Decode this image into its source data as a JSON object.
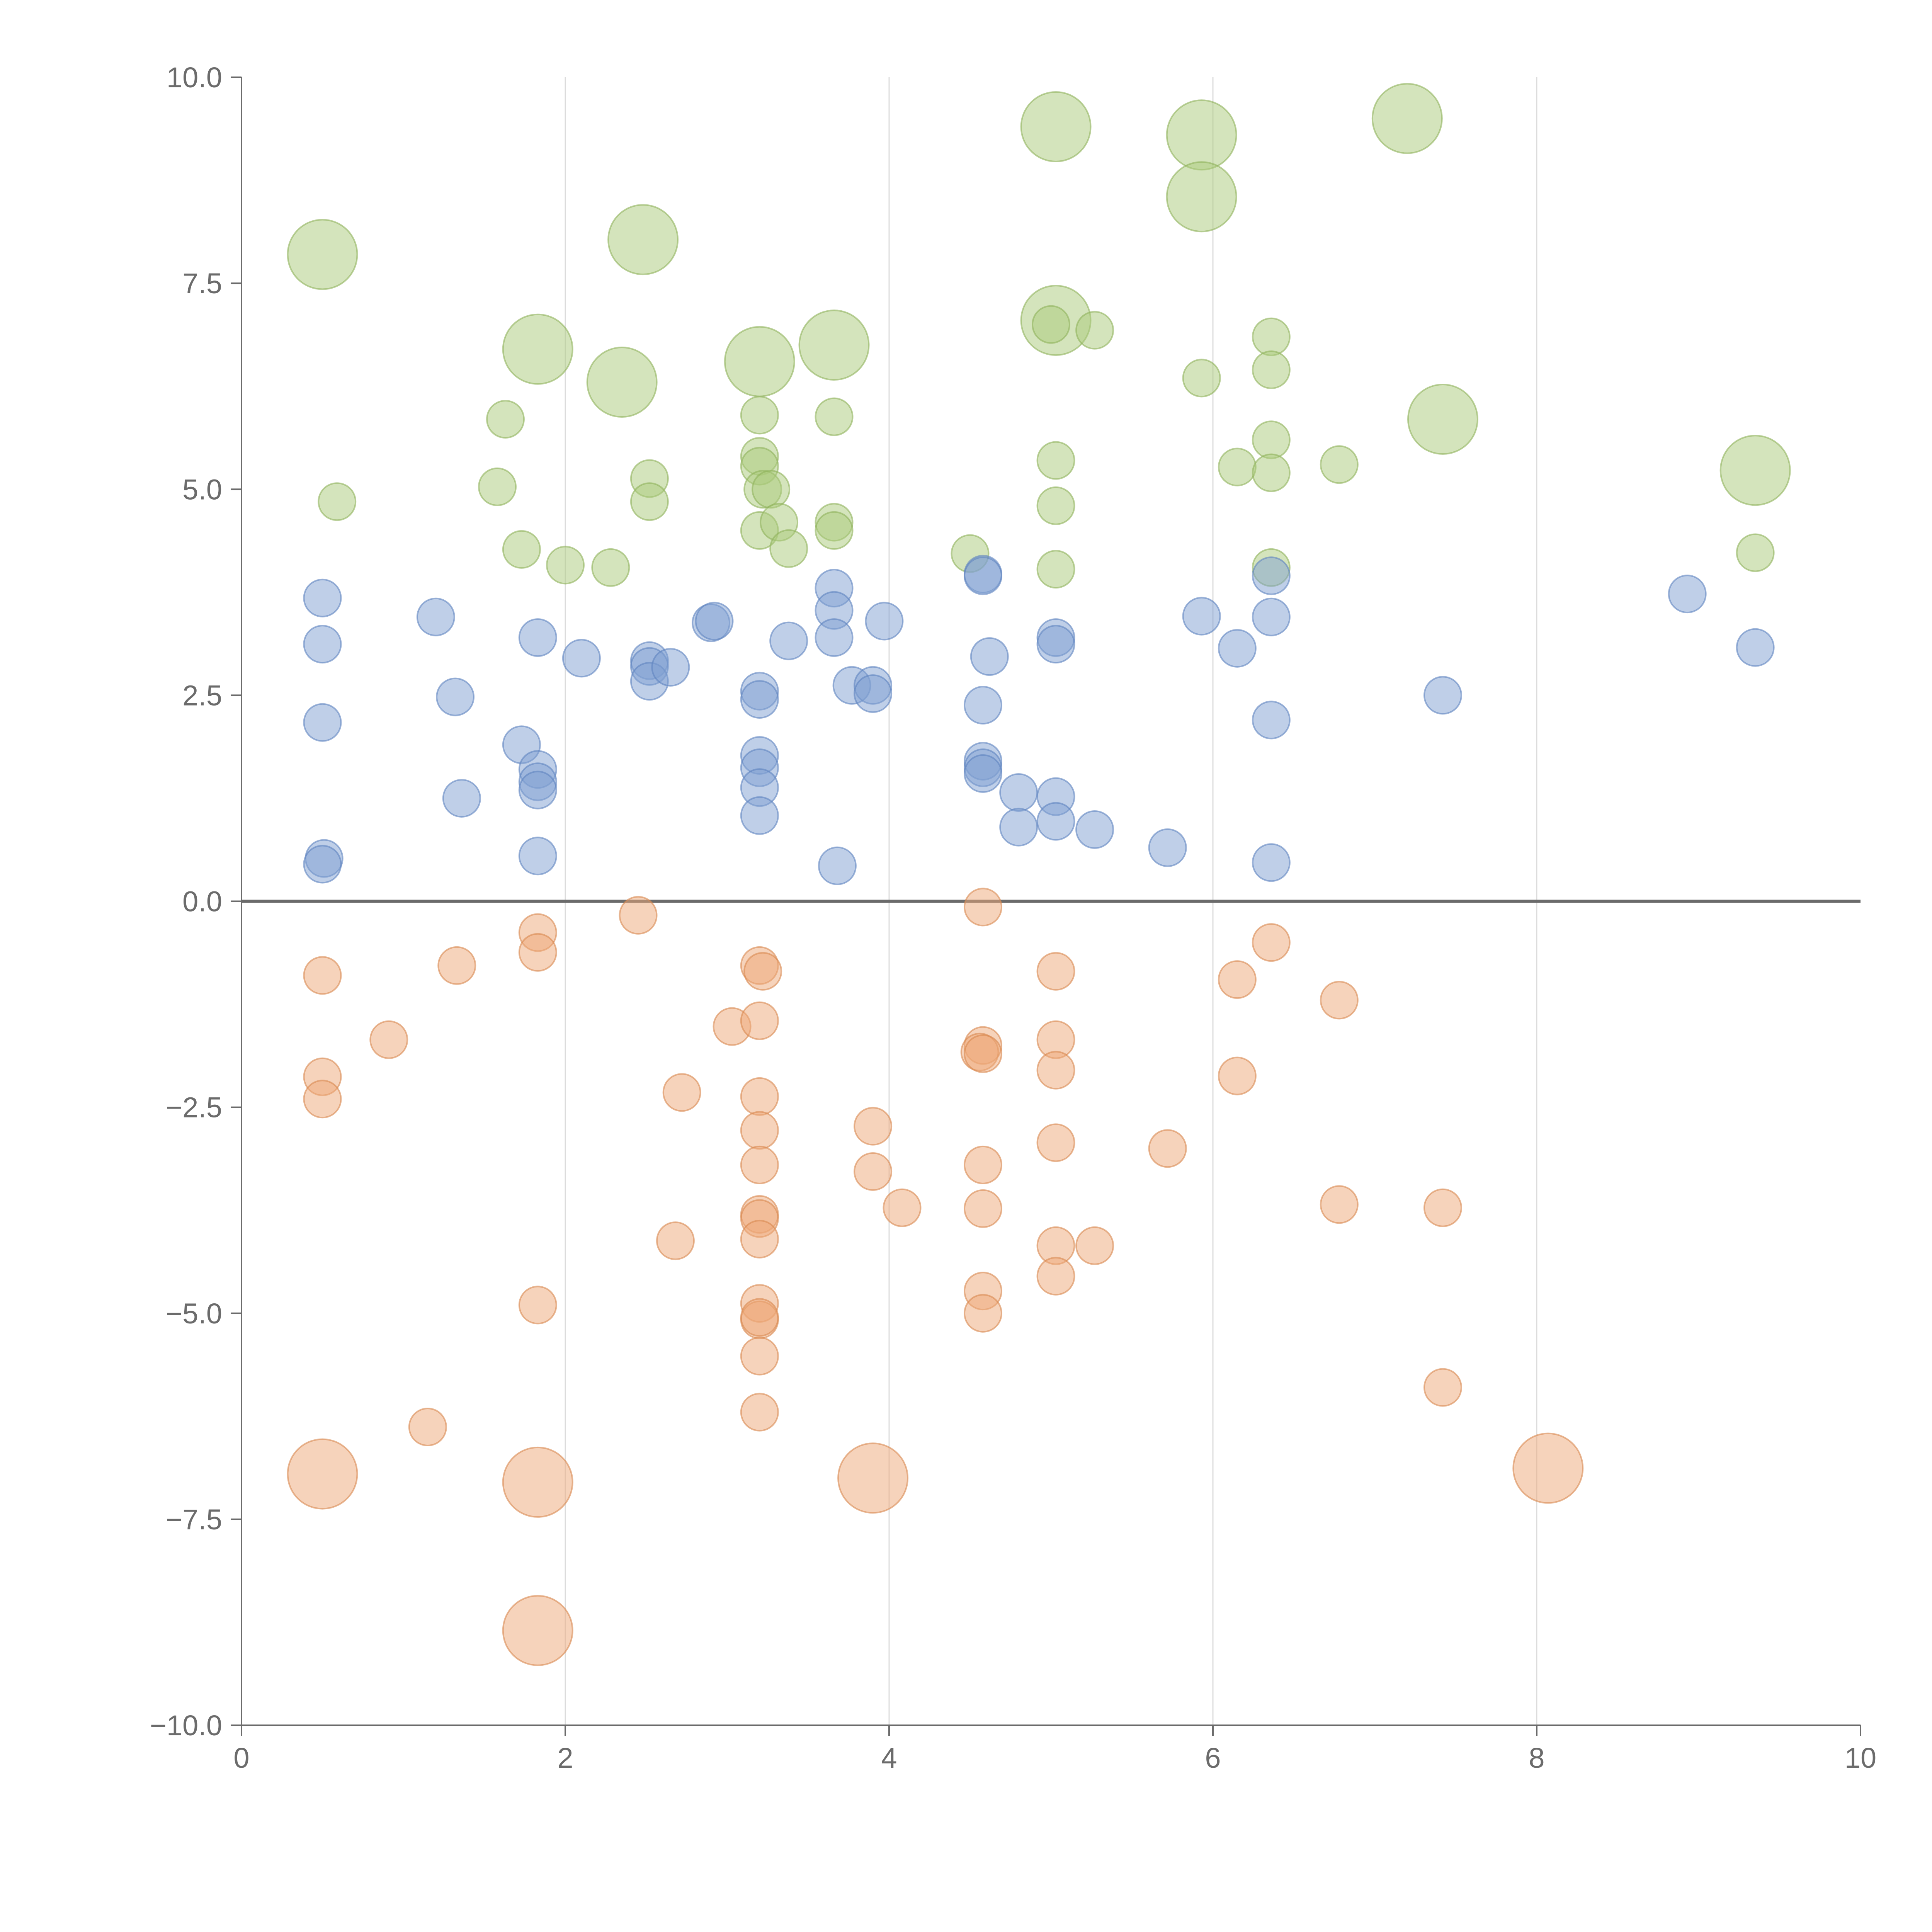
{
  "chart_data": {
    "type": "scatter",
    "title": "",
    "xlabel": "",
    "ylabel": "",
    "xlim": [
      0,
      10
    ],
    "ylim": [
      -10,
      10
    ],
    "grid": "x-only",
    "xticks": [
      0,
      2,
      4,
      6,
      8,
      10
    ],
    "xtick_labels": [
      "0",
      "2",
      "4",
      "6",
      "8",
      "10"
    ],
    "yticks": [
      10,
      7.5,
      5,
      2.5,
      0,
      -2.5,
      -5,
      -7.5,
      -10
    ],
    "ytick_labels": [
      "10.0",
      "7.5",
      "5.0",
      "2.5",
      "0.0",
      "−2.5",
      "−5.0",
      "−7.5",
      "−10.0"
    ],
    "baseline_y": 0,
    "series": [
      {
        "name": "green",
        "color": "#a9c97a",
        "stroke": "#8fb35c",
        "points": [
          {
            "x": 0.5,
            "y": 7.85,
            "s": 2
          },
          {
            "x": 0.59,
            "y": 4.85,
            "s": 1
          },
          {
            "x": 1.63,
            "y": 5.85,
            "s": 1
          },
          {
            "x": 1.58,
            "y": 5.03,
            "s": 1
          },
          {
            "x": 1.73,
            "y": 4.27,
            "s": 1
          },
          {
            "x": 1.83,
            "y": 6.7,
            "s": 2
          },
          {
            "x": 2.0,
            "y": 4.08,
            "s": 1
          },
          {
            "x": 2.28,
            "y": 4.05,
            "s": 1
          },
          {
            "x": 2.35,
            "y": 6.3,
            "s": 2
          },
          {
            "x": 2.48,
            "y": 8.03,
            "s": 2
          },
          {
            "x": 2.52,
            "y": 5.13,
            "s": 1
          },
          {
            "x": 2.52,
            "y": 4.85,
            "s": 1
          },
          {
            "x": 3.2,
            "y": 6.55,
            "s": 2
          },
          {
            "x": 3.2,
            "y": 5.9,
            "s": 1
          },
          {
            "x": 3.2,
            "y": 5.4,
            "s": 1
          },
          {
            "x": 3.2,
            "y": 5.28,
            "s": 1
          },
          {
            "x": 3.22,
            "y": 5.0,
            "s": 1
          },
          {
            "x": 3.27,
            "y": 5.0,
            "s": 1
          },
          {
            "x": 3.2,
            "y": 4.5,
            "s": 1
          },
          {
            "x": 3.32,
            "y": 4.6,
            "s": 1
          },
          {
            "x": 3.38,
            "y": 4.28,
            "s": 1
          },
          {
            "x": 3.66,
            "y": 6.75,
            "s": 2
          },
          {
            "x": 3.66,
            "y": 5.88,
            "s": 1
          },
          {
            "x": 3.66,
            "y": 4.6,
            "s": 1
          },
          {
            "x": 3.66,
            "y": 4.5,
            "s": 1
          },
          {
            "x": 4.5,
            "y": 4.22,
            "s": 1
          },
          {
            "x": 5.03,
            "y": 9.4,
            "s": 2
          },
          {
            "x": 5.03,
            "y": 7.05,
            "s": 2
          },
          {
            "x": 5.0,
            "y": 7.0,
            "s": 1
          },
          {
            "x": 5.27,
            "y": 6.93,
            "s": 1
          },
          {
            "x": 5.03,
            "y": 5.35,
            "s": 1
          },
          {
            "x": 5.03,
            "y": 4.8,
            "s": 1
          },
          {
            "x": 5.03,
            "y": 4.03,
            "s": 1
          },
          {
            "x": 5.93,
            "y": 9.3,
            "s": 2
          },
          {
            "x": 5.93,
            "y": 8.55,
            "s": 2
          },
          {
            "x": 5.93,
            "y": 6.35,
            "s": 1
          },
          {
            "x": 6.15,
            "y": 5.27,
            "s": 1
          },
          {
            "x": 6.36,
            "y": 6.85,
            "s": 1
          },
          {
            "x": 6.36,
            "y": 6.45,
            "s": 1
          },
          {
            "x": 6.36,
            "y": 5.6,
            "s": 1
          },
          {
            "x": 6.36,
            "y": 5.2,
            "s": 1
          },
          {
            "x": 6.36,
            "y": 4.05,
            "s": 1
          },
          {
            "x": 6.78,
            "y": 5.3,
            "s": 1
          },
          {
            "x": 7.2,
            "y": 9.5,
            "s": 2
          },
          {
            "x": 7.42,
            "y": 5.85,
            "s": 2
          },
          {
            "x": 9.35,
            "y": 5.23,
            "s": 2
          },
          {
            "x": 9.35,
            "y": 4.23,
            "s": 1
          }
        ]
      },
      {
        "name": "blue",
        "color": "#7f9fd1",
        "stroke": "#5f83bf",
        "points": [
          {
            "x": 0.5,
            "y": 3.68,
            "s": 1
          },
          {
            "x": 0.5,
            "y": 3.12,
            "s": 1
          },
          {
            "x": 0.5,
            "y": 2.17,
            "s": 1
          },
          {
            "x": 0.51,
            "y": 0.52,
            "s": 1
          },
          {
            "x": 0.5,
            "y": 0.45,
            "s": 1
          },
          {
            "x": 1.2,
            "y": 3.45,
            "s": 1
          },
          {
            "x": 1.32,
            "y": 2.48,
            "s": 1
          },
          {
            "x": 1.36,
            "y": 1.25,
            "s": 1
          },
          {
            "x": 1.73,
            "y": 1.9,
            "s": 1
          },
          {
            "x": 1.83,
            "y": 3.2,
            "s": 1
          },
          {
            "x": 1.83,
            "y": 1.6,
            "s": 1
          },
          {
            "x": 1.83,
            "y": 1.45,
            "s": 1
          },
          {
            "x": 1.83,
            "y": 1.35,
            "s": 1
          },
          {
            "x": 1.83,
            "y": 0.55,
            "s": 1
          },
          {
            "x": 2.1,
            "y": 2.95,
            "s": 1
          },
          {
            "x": 2.52,
            "y": 2.92,
            "s": 1
          },
          {
            "x": 2.52,
            "y": 2.85,
            "s": 1
          },
          {
            "x": 2.52,
            "y": 2.67,
            "s": 1
          },
          {
            "x": 2.65,
            "y": 2.84,
            "s": 1
          },
          {
            "x": 2.9,
            "y": 3.38,
            "s": 1
          },
          {
            "x": 2.92,
            "y": 3.4,
            "s": 1
          },
          {
            "x": 3.2,
            "y": 2.55,
            "s": 1
          },
          {
            "x": 3.2,
            "y": 2.45,
            "s": 1
          },
          {
            "x": 3.2,
            "y": 1.77,
            "s": 1
          },
          {
            "x": 3.2,
            "y": 1.62,
            "s": 1
          },
          {
            "x": 3.2,
            "y": 1.38,
            "s": 1
          },
          {
            "x": 3.2,
            "y": 1.04,
            "s": 1
          },
          {
            "x": 3.38,
            "y": 3.16,
            "s": 1
          },
          {
            "x": 3.66,
            "y": 3.8,
            "s": 1
          },
          {
            "x": 3.66,
            "y": 3.53,
            "s": 1
          },
          {
            "x": 3.66,
            "y": 3.2,
            "s": 1
          },
          {
            "x": 3.77,
            "y": 2.62,
            "s": 1
          },
          {
            "x": 3.9,
            "y": 2.62,
            "s": 1
          },
          {
            "x": 3.9,
            "y": 2.52,
            "s": 1
          },
          {
            "x": 3.68,
            "y": 0.43,
            "s": 1
          },
          {
            "x": 3.97,
            "y": 3.4,
            "s": 1
          },
          {
            "x": 4.58,
            "y": 3.97,
            "s": 1
          },
          {
            "x": 4.58,
            "y": 3.95,
            "s": 1
          },
          {
            "x": 4.62,
            "y": 2.97,
            "s": 1
          },
          {
            "x": 4.58,
            "y": 2.38,
            "s": 1
          },
          {
            "x": 4.58,
            "y": 1.7,
            "s": 1
          },
          {
            "x": 4.58,
            "y": 1.62,
            "s": 1
          },
          {
            "x": 4.58,
            "y": 1.55,
            "s": 1
          },
          {
            "x": 4.8,
            "y": 1.32,
            "s": 1
          },
          {
            "x": 4.8,
            "y": 0.9,
            "s": 1
          },
          {
            "x": 5.03,
            "y": 3.2,
            "s": 1
          },
          {
            "x": 5.03,
            "y": 3.12,
            "s": 1
          },
          {
            "x": 5.03,
            "y": 1.27,
            "s": 1
          },
          {
            "x": 5.03,
            "y": 0.97,
            "s": 1
          },
          {
            "x": 5.27,
            "y": 0.87,
            "s": 1
          },
          {
            "x": 5.72,
            "y": 0.65,
            "s": 1
          },
          {
            "x": 5.93,
            "y": 3.46,
            "s": 1
          },
          {
            "x": 6.15,
            "y": 3.07,
            "s": 1
          },
          {
            "x": 6.36,
            "y": 3.95,
            "s": 1
          },
          {
            "x": 6.36,
            "y": 3.45,
            "s": 1
          },
          {
            "x": 6.36,
            "y": 2.2,
            "s": 1
          },
          {
            "x": 6.36,
            "y": 0.47,
            "s": 1
          },
          {
            "x": 7.42,
            "y": 2.5,
            "s": 1
          },
          {
            "x": 8.93,
            "y": 3.73,
            "s": 1
          },
          {
            "x": 9.35,
            "y": 3.08,
            "s": 1
          }
        ]
      },
      {
        "name": "orange",
        "color": "#eea777",
        "stroke": "#d98950",
        "points": [
          {
            "x": 0.5,
            "y": -0.9,
            "s": 1
          },
          {
            "x": 0.5,
            "y": -2.13,
            "s": 1
          },
          {
            "x": 0.5,
            "y": -2.4,
            "s": 1
          },
          {
            "x": 0.5,
            "y": -6.95,
            "s": 2
          },
          {
            "x": 0.91,
            "y": -1.68,
            "s": 1
          },
          {
            "x": 1.15,
            "y": -6.38,
            "s": 1
          },
          {
            "x": 1.33,
            "y": -0.78,
            "s": 1
          },
          {
            "x": 1.83,
            "y": -0.38,
            "s": 1
          },
          {
            "x": 1.83,
            "y": -0.62,
            "s": 1
          },
          {
            "x": 1.83,
            "y": -4.9,
            "s": 1
          },
          {
            "x": 1.83,
            "y": -7.05,
            "s": 2
          },
          {
            "x": 1.83,
            "y": -8.85,
            "s": 2
          },
          {
            "x": 2.45,
            "y": -0.17,
            "s": 1
          },
          {
            "x": 2.68,
            "y": -4.12,
            "s": 1
          },
          {
            "x": 2.72,
            "y": -2.32,
            "s": 1
          },
          {
            "x": 3.03,
            "y": -1.52,
            "s": 1
          },
          {
            "x": 3.2,
            "y": -0.78,
            "s": 1
          },
          {
            "x": 3.22,
            "y": -0.85,
            "s": 1
          },
          {
            "x": 3.2,
            "y": -1.45,
            "s": 1
          },
          {
            "x": 3.2,
            "y": -2.37,
            "s": 1
          },
          {
            "x": 3.2,
            "y": -2.78,
            "s": 1
          },
          {
            "x": 3.2,
            "y": -3.2,
            "s": 1
          },
          {
            "x": 3.2,
            "y": -3.8,
            "s": 1
          },
          {
            "x": 3.2,
            "y": -3.85,
            "s": 1
          },
          {
            "x": 3.2,
            "y": -4.1,
            "s": 1
          },
          {
            "x": 3.2,
            "y": -4.88,
            "s": 1
          },
          {
            "x": 3.2,
            "y": -5.08,
            "s": 1
          },
          {
            "x": 3.2,
            "y": -5.05,
            "s": 1
          },
          {
            "x": 3.2,
            "y": -5.52,
            "s": 1
          },
          {
            "x": 3.2,
            "y": -6.2,
            "s": 1
          },
          {
            "x": 3.9,
            "y": -2.73,
            "s": 1
          },
          {
            "x": 3.9,
            "y": -3.28,
            "s": 1
          },
          {
            "x": 3.9,
            "y": -7.0,
            "s": 2
          },
          {
            "x": 4.08,
            "y": -3.72,
            "s": 1
          },
          {
            "x": 4.58,
            "y": -0.07,
            "s": 1
          },
          {
            "x": 4.58,
            "y": -1.75,
            "s": 1
          },
          {
            "x": 4.56,
            "y": -1.83,
            "s": 1
          },
          {
            "x": 4.58,
            "y": -1.85,
            "s": 1
          },
          {
            "x": 4.58,
            "y": -3.2,
            "s": 1
          },
          {
            "x": 4.58,
            "y": -3.73,
            "s": 1
          },
          {
            "x": 4.58,
            "y": -4.73,
            "s": 1
          },
          {
            "x": 4.58,
            "y": -5.0,
            "s": 1
          },
          {
            "x": 5.03,
            "y": -0.85,
            "s": 1
          },
          {
            "x": 5.03,
            "y": -1.68,
            "s": 1
          },
          {
            "x": 5.03,
            "y": -2.05,
            "s": 1
          },
          {
            "x": 5.03,
            "y": -2.93,
            "s": 1
          },
          {
            "x": 5.03,
            "y": -4.18,
            "s": 1
          },
          {
            "x": 5.03,
            "y": -4.55,
            "s": 1
          },
          {
            "x": 5.27,
            "y": -4.18,
            "s": 1
          },
          {
            "x": 5.72,
            "y": -3.0,
            "s": 1
          },
          {
            "x": 6.15,
            "y": -0.95,
            "s": 1
          },
          {
            "x": 6.15,
            "y": -2.12,
            "s": 1
          },
          {
            "x": 6.36,
            "y": -0.5,
            "s": 1
          },
          {
            "x": 6.78,
            "y": -1.2,
            "s": 1
          },
          {
            "x": 6.78,
            "y": -3.68,
            "s": 1
          },
          {
            "x": 7.42,
            "y": -3.72,
            "s": 1
          },
          {
            "x": 7.42,
            "y": -5.9,
            "s": 1
          },
          {
            "x": 8.07,
            "y": -6.88,
            "s": 2
          }
        ]
      }
    ]
  }
}
